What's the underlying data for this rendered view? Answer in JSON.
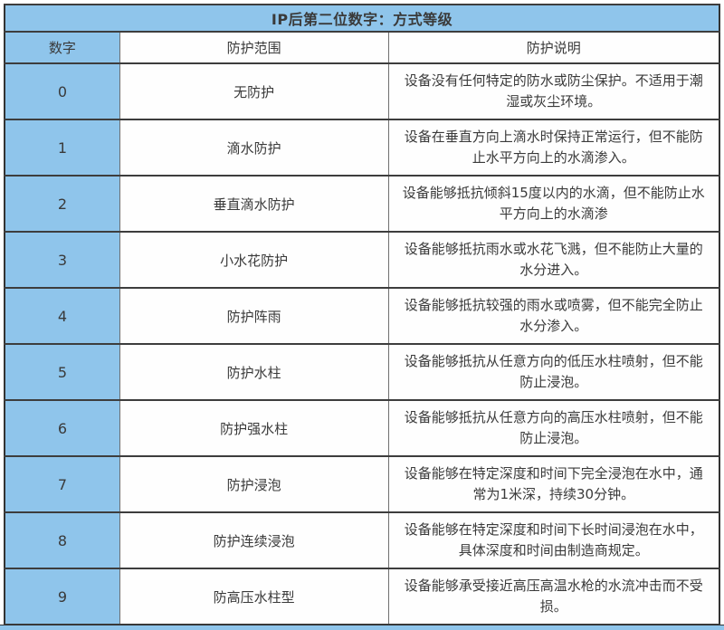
{
  "table": {
    "title": "IP后第二位数字：方式等级",
    "columns": {
      "num": "数字",
      "scope": "防护范围",
      "desc": "防护说明"
    },
    "rows": [
      {
        "num": "0",
        "scope": "无防护",
        "desc": "设备没有任何特定的防水或防尘保护。不适用于潮湿或灰尘环境。"
      },
      {
        "num": "1",
        "scope": "滴水防护",
        "desc": "设备在垂直方向上滴水时保持正常运行，但不能防止水平方向上的水滴渗入。"
      },
      {
        "num": "2",
        "scope": "垂直滴水防护",
        "desc": "设备能够抵抗倾斜15度以内的水滴，但不能防止水平方向上的水滴渗"
      },
      {
        "num": "3",
        "scope": "小水花防护",
        "desc": "设备能够抵抗雨水或水花飞溅，但不能防止大量的水分进入。"
      },
      {
        "num": "4",
        "scope": "防护阵雨",
        "desc": "设备能够抵抗较强的雨水或喷雾，但不能完全防止水分渗入。"
      },
      {
        "num": "5",
        "scope": "防护水柱",
        "desc": "设备能够抵抗从任意方向的低压水柱喷射，但不能防止浸泡。"
      },
      {
        "num": "6",
        "scope": "防护强水柱",
        "desc": "设备能够抵抗从任意方向的高压水柱喷射，但不能防止浸泡。"
      },
      {
        "num": "7",
        "scope": "防护浸泡",
        "desc": "设备能够在特定深度和时间下完全浸泡在水中，通常为1米深，持续30分钟。"
      },
      {
        "num": "8",
        "scope": "防护连续浸泡",
        "desc": "设备能够在特定深度和时间下长时间浸泡在水中，具体深度和时间由制造商规定。"
      },
      {
        "num": "9",
        "scope": "防高压水柱型",
        "desc": "设备能够承受接近高压高温水枪的水流冲击而不受损。"
      }
    ],
    "colors": {
      "header_blue": "#8fc5eb",
      "cell_background": "#fefefe",
      "border_dark": "#3d3d3d",
      "border_light": "#6f6f6f",
      "text": "#3a3a3a"
    }
  }
}
